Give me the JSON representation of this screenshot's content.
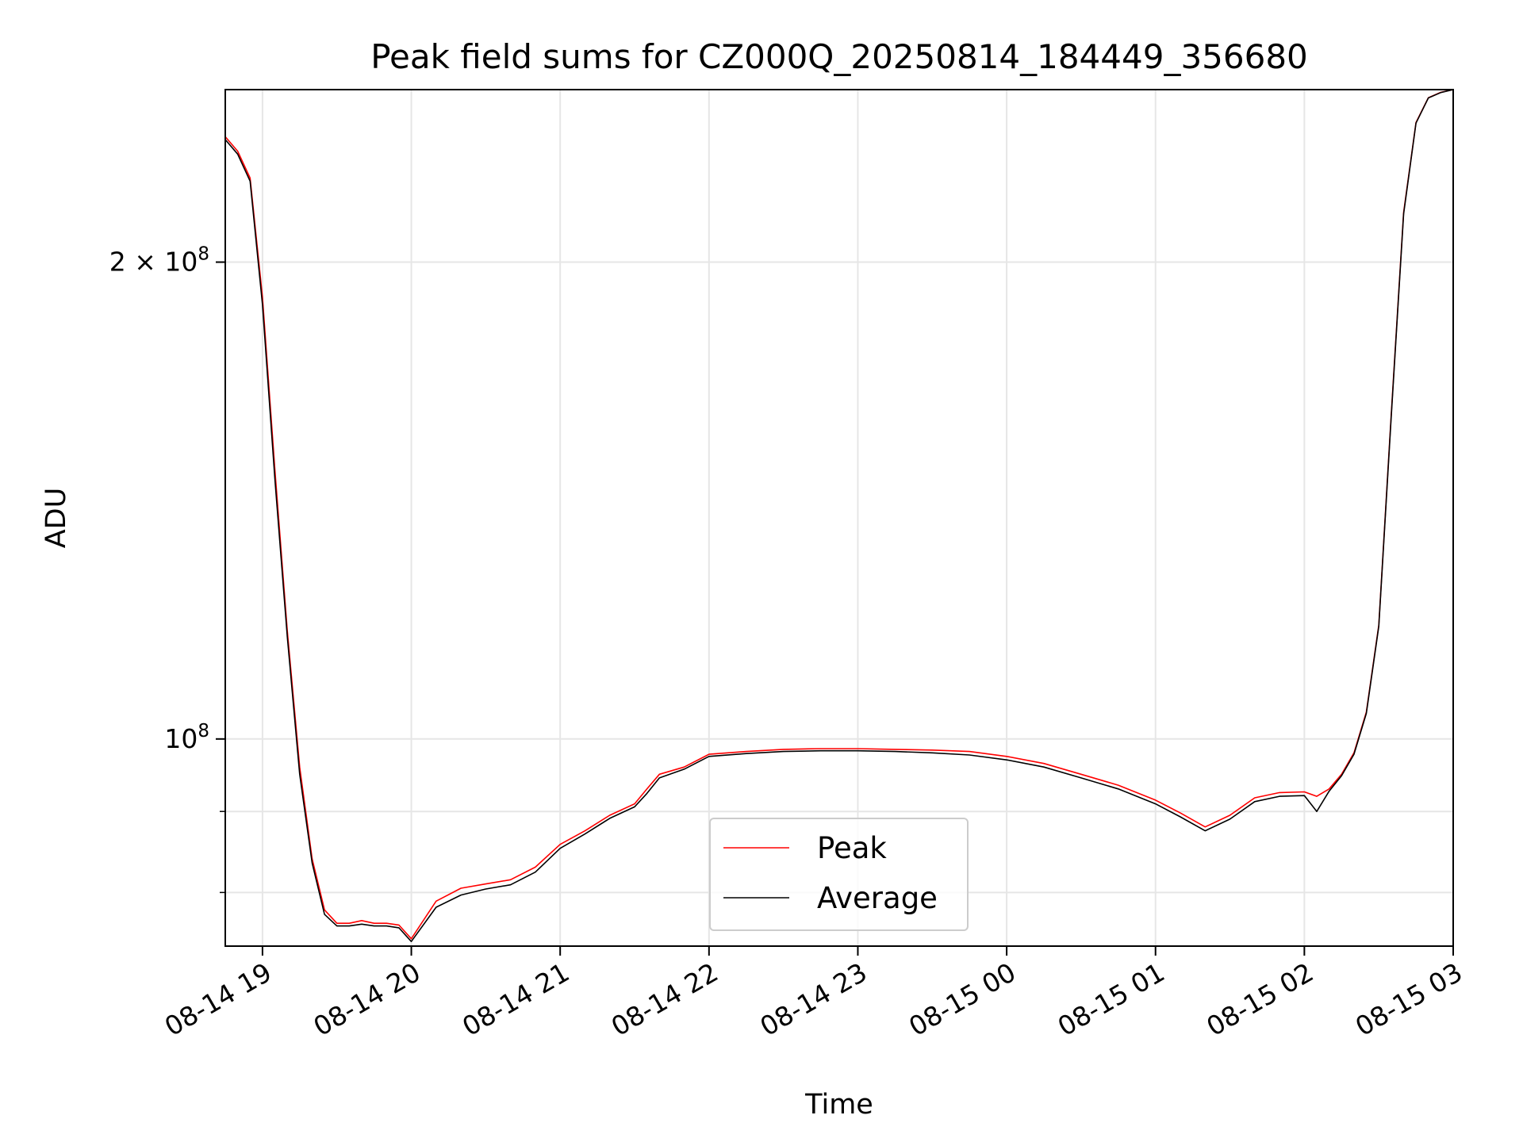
{
  "chart_data": {
    "type": "line",
    "title": "Peak field sums for CZ000Q_20250814_184449_356680",
    "xlabel": "Time",
    "ylabel": "ADU",
    "y_scale": "log",
    "grid": true,
    "legend_position": "lower center",
    "xlim": [
      "2025-08-14 18:45",
      "2025-08-15 03:00"
    ],
    "ylim": [
      74000000,
      257000000
    ],
    "x_ticks": [
      "08-14 19",
      "08-14 20",
      "08-14 21",
      "08-14 22",
      "08-14 23",
      "08-15 00",
      "08-15 01",
      "08-15 02",
      "08-15 03"
    ],
    "x_tick_values": [
      "2025-08-14 19:00",
      "2025-08-14 20:00",
      "2025-08-14 21:00",
      "2025-08-14 22:00",
      "2025-08-14 23:00",
      "2025-08-15 00:00",
      "2025-08-15 01:00",
      "2025-08-15 02:00",
      "2025-08-15 03:00"
    ],
    "y_major_ticks": [
      {
        "value": 100000000,
        "base": "10",
        "exp": "8",
        "coef": ""
      },
      {
        "value": 200000000,
        "base": "10",
        "exp": "8",
        "coef": "2 × "
      }
    ],
    "y_minor_ticks": [
      80000000,
      90000000
    ],
    "colors": {
      "Peak": "#ff0000",
      "Average": "#000000"
    },
    "series": [
      {
        "name": "Peak",
        "x": [
          "2025-08-14 18:45",
          "2025-08-14 18:50",
          "2025-08-14 18:55",
          "2025-08-14 19:00",
          "2025-08-14 19:05",
          "2025-08-14 19:10",
          "2025-08-14 19:15",
          "2025-08-14 19:20",
          "2025-08-14 19:25",
          "2025-08-14 19:30",
          "2025-08-14 19:35",
          "2025-08-14 19:40",
          "2025-08-14 19:45",
          "2025-08-14 19:50",
          "2025-08-14 19:55",
          "2025-08-14 20:00",
          "2025-08-14 20:10",
          "2025-08-14 20:20",
          "2025-08-14 20:30",
          "2025-08-14 20:40",
          "2025-08-14 20:50",
          "2025-08-14 21:00",
          "2025-08-14 21:10",
          "2025-08-14 21:20",
          "2025-08-14 21:30",
          "2025-08-14 21:35",
          "2025-08-14 21:40",
          "2025-08-14 21:50",
          "2025-08-14 22:00",
          "2025-08-14 22:15",
          "2025-08-14 22:30",
          "2025-08-14 22:45",
          "2025-08-14 23:00",
          "2025-08-14 23:15",
          "2025-08-14 23:30",
          "2025-08-14 23:45",
          "2025-08-15 00:00",
          "2025-08-15 00:15",
          "2025-08-15 00:30",
          "2025-08-15 00:45",
          "2025-08-15 01:00",
          "2025-08-15 01:10",
          "2025-08-15 01:20",
          "2025-08-15 01:30",
          "2025-08-15 01:40",
          "2025-08-15 01:50",
          "2025-08-15 02:00",
          "2025-08-15 02:05",
          "2025-08-15 02:10",
          "2025-08-15 02:15",
          "2025-08-15 02:20",
          "2025-08-15 02:25",
          "2025-08-15 02:30",
          "2025-08-15 02:35",
          "2025-08-15 02:40",
          "2025-08-15 02:45",
          "2025-08-15 02:50",
          "2025-08-15 02:55",
          "2025-08-15 03:00"
        ],
        "y": [
          240000000,
          235000000,
          226000000,
          190000000,
          148000000,
          117000000,
          96000000,
          84000000,
          78000000,
          76500000,
          76500000,
          76800000,
          76500000,
          76500000,
          76300000,
          74800000,
          79000000,
          80500000,
          81000000,
          81500000,
          83000000,
          85800000,
          87500000,
          89500000,
          91000000,
          93000000,
          95000000,
          96000000,
          97800000,
          98200000,
          98500000,
          98600000,
          98600000,
          98500000,
          98400000,
          98200000,
          97500000,
          96500000,
          95000000,
          93500000,
          91500000,
          89800000,
          88000000,
          89500000,
          91800000,
          92500000,
          92600000,
          92000000,
          93000000,
          95000000,
          98000000,
          104000000,
          118000000,
          160000000,
          215000000,
          245000000,
          254000000,
          256000000,
          257000000
        ]
      },
      {
        "name": "Average",
        "x": [
          "2025-08-14 18:45",
          "2025-08-14 18:50",
          "2025-08-14 18:55",
          "2025-08-14 19:00",
          "2025-08-14 19:05",
          "2025-08-14 19:10",
          "2025-08-14 19:15",
          "2025-08-14 19:20",
          "2025-08-14 19:25",
          "2025-08-14 19:30",
          "2025-08-14 19:35",
          "2025-08-14 19:40",
          "2025-08-14 19:45",
          "2025-08-14 19:50",
          "2025-08-14 19:55",
          "2025-08-14 20:00",
          "2025-08-14 20:10",
          "2025-08-14 20:20",
          "2025-08-14 20:30",
          "2025-08-14 20:40",
          "2025-08-14 20:50",
          "2025-08-14 21:00",
          "2025-08-14 21:10",
          "2025-08-14 21:20",
          "2025-08-14 21:30",
          "2025-08-14 21:35",
          "2025-08-14 21:40",
          "2025-08-14 21:50",
          "2025-08-14 22:00",
          "2025-08-14 22:15",
          "2025-08-14 22:30",
          "2025-08-14 22:45",
          "2025-08-14 23:00",
          "2025-08-14 23:15",
          "2025-08-14 23:30",
          "2025-08-14 23:45",
          "2025-08-15 00:00",
          "2025-08-15 00:15",
          "2025-08-15 00:30",
          "2025-08-15 00:45",
          "2025-08-15 01:00",
          "2025-08-15 01:10",
          "2025-08-15 01:20",
          "2025-08-15 01:30",
          "2025-08-15 01:40",
          "2025-08-15 01:50",
          "2025-08-15 02:00",
          "2025-08-15 02:05",
          "2025-08-15 02:10",
          "2025-08-15 02:15",
          "2025-08-15 02:20",
          "2025-08-15 02:25",
          "2025-08-15 02:30",
          "2025-08-15 02:35",
          "2025-08-15 02:40",
          "2025-08-15 02:45",
          "2025-08-15 02:50",
          "2025-08-15 02:55",
          "2025-08-15 03:00"
        ],
        "y": [
          239000000,
          234000000,
          225000000,
          188000000,
          146000000,
          116000000,
          95000000,
          83500000,
          77500000,
          76200000,
          76200000,
          76400000,
          76200000,
          76200000,
          76000000,
          74500000,
          78300000,
          79700000,
          80400000,
          80900000,
          82400000,
          85300000,
          87100000,
          89100000,
          90600000,
          92400000,
          94500000,
          95700000,
          97500000,
          97900000,
          98200000,
          98300000,
          98300000,
          98200000,
          98000000,
          97700000,
          97000000,
          96000000,
          94500000,
          93000000,
          91000000,
          89300000,
          87500000,
          89000000,
          91300000,
          92000000,
          92100000,
          90000000,
          92700000,
          94800000,
          97800000,
          103800000,
          117800000,
          159500000,
          214500000,
          244800000,
          253900000,
          255900000,
          257000000
        ]
      }
    ]
  }
}
